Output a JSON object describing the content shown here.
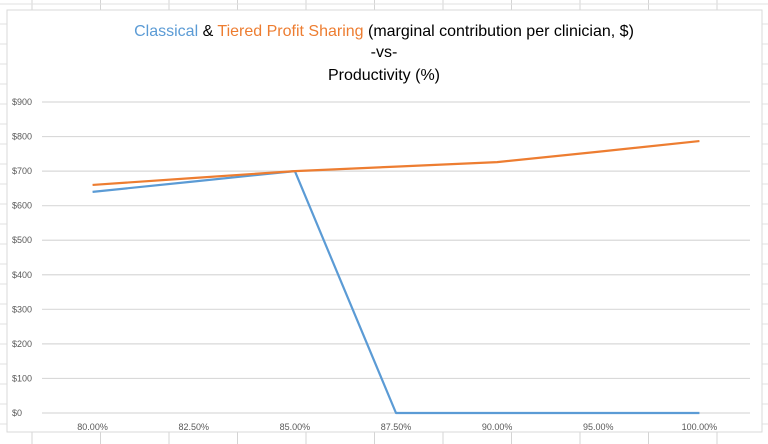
{
  "chart_data": {
    "type": "line",
    "title": {
      "part1": "Classical",
      "part2": " & ",
      "part3": "Tiered Profit Sharing",
      "part4": " (marginal contribution per clinician, $)",
      "line2": "-vs-",
      "line3": "Productivity (%)"
    },
    "categories": [
      "80.00%",
      "82.50%",
      "85.00%",
      "87.50%",
      "90.00%",
      "95.00%",
      "100.00%"
    ],
    "series": [
      {
        "name": "Classical",
        "color": "#5b9bd5",
        "values": [
          640,
          670,
          700,
          0,
          0,
          0,
          0
        ]
      },
      {
        "name": "Tiered Profit Sharing",
        "color": "#ed7d31",
        "values": [
          660,
          680,
          700,
          713,
          726,
          756,
          787
        ]
      }
    ],
    "yticks": [
      "$0",
      "$100",
      "$200",
      "$300",
      "$400",
      "$500",
      "$600",
      "$700",
      "$800",
      "$900"
    ],
    "ylim": [
      0,
      900
    ],
    "xlabel": "",
    "ylabel": "",
    "grid": true,
    "legend": "none"
  }
}
